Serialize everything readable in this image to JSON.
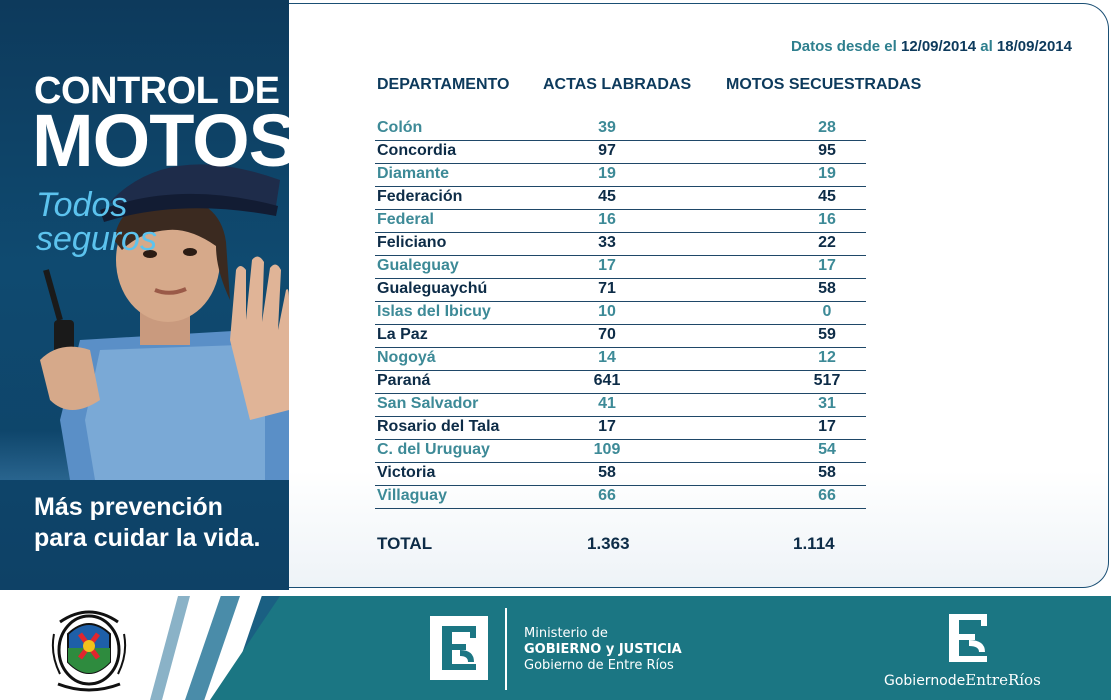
{
  "left_panel": {
    "title_line1": "CONTROL DE",
    "title_line2": "MOTOS",
    "slogan_line1": "Todos",
    "slogan_line2": "seguros",
    "prevention_line1": "Más prevención",
    "prevention_line2": "para cuidar la vida."
  },
  "date_range": {
    "prefix": "Datos desde el",
    "start": "12/09/2014",
    "middle": "al",
    "end": "18/09/2014"
  },
  "table": {
    "headers": {
      "departamento": "DEPARTAMENTO",
      "actas": "ACTAS LABRADAS",
      "motos": "MOTOS SECUESTRADAS"
    },
    "rows": [
      {
        "departamento": "Colón",
        "actas": "39",
        "motos": "28"
      },
      {
        "departamento": "Concordia",
        "actas": "97",
        "motos": "95"
      },
      {
        "departamento": "Diamante",
        "actas": "19",
        "motos": "19"
      },
      {
        "departamento": "Federación",
        "actas": "45",
        "motos": "45"
      },
      {
        "departamento": "Federal",
        "actas": "16",
        "motos": "16"
      },
      {
        "departamento": "Feliciano",
        "actas": "33",
        "motos": "22"
      },
      {
        "departamento": "Gualeguay",
        "actas": "17",
        "motos": "17"
      },
      {
        "departamento": "Gualeguaychú",
        "actas": "71",
        "motos": "58"
      },
      {
        "departamento": "Islas del Ibicuy",
        "actas": "10",
        "motos": "0"
      },
      {
        "departamento": "La Paz",
        "actas": "70",
        "motos": "59"
      },
      {
        "departamento": "Nogoyá",
        "actas": "14",
        "motos": "12"
      },
      {
        "departamento": "Paraná",
        "actas": "641",
        "motos": "517"
      },
      {
        "departamento": "San Salvador",
        "actas": "41",
        "motos": "31"
      },
      {
        "departamento": "Rosario del Tala",
        "actas": "17",
        "motos": "17"
      },
      {
        "departamento": "C. del Uruguay",
        "actas": "109",
        "motos": "54"
      },
      {
        "departamento": "Victoria",
        "actas": "58",
        "motos": "58"
      },
      {
        "departamento": "Villaguay",
        "actas": "66",
        "motos": "66"
      }
    ],
    "total": {
      "label": "TOTAL",
      "actas": "1.363",
      "motos": "1.114"
    }
  },
  "footer": {
    "ministry_line1": "Ministerio de",
    "ministry_line2": "GOBIERNO y JUSTICIA",
    "ministry_line3": "Gobierno de Entre Ríos",
    "brand_part1": "Gobierno",
    "brand_part2": "de",
    "brand_part3": "EntreRíos"
  },
  "colors": {
    "navy": "#0d3a5c",
    "teal": "#1b7683",
    "light_blue": "#5cc3ee",
    "alt_row_text": "#3d8a97"
  },
  "icons": {
    "crest": "provincial-crest-icon",
    "logo": "entre-rios-logo-icon"
  }
}
